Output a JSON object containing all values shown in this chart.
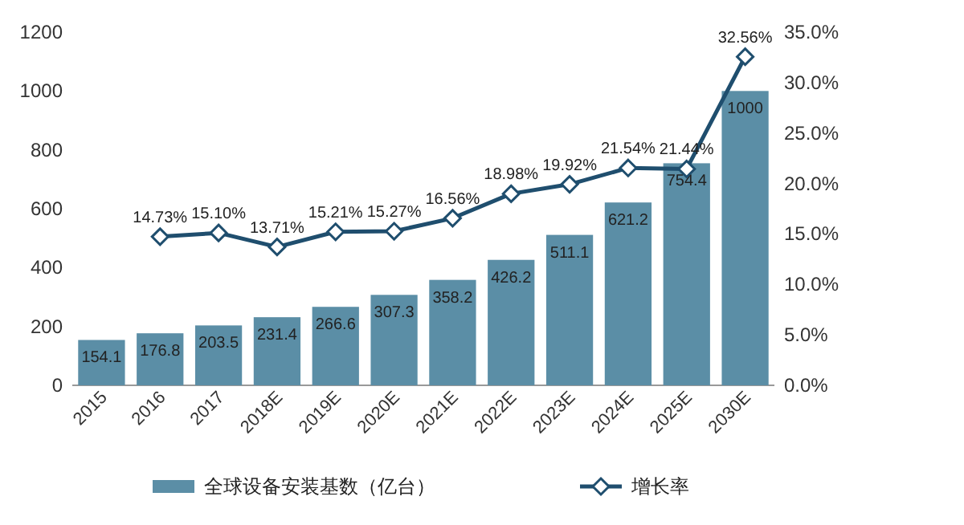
{
  "chart_data": {
    "type": "bar",
    "categories": [
      "2015",
      "2016",
      "2017",
      "2018E",
      "2019E",
      "2020E",
      "2021E",
      "2022E",
      "2023E",
      "2024E",
      "2025E",
      "2030E"
    ],
    "series": [
      {
        "name": "全球设备安装基数（亿台）",
        "color": "#5b8ea6",
        "values": [
          154.1,
          176.8,
          203.5,
          231.4,
          266.6,
          307.3,
          358.2,
          426.2,
          511.1,
          621.2,
          754.4,
          1000
        ],
        "value_labels": [
          "154.1",
          "176.8",
          "203.5",
          "231.4",
          "266.6",
          "307.3",
          "358.2",
          "426.2",
          "511.1",
          "621.2",
          "754.4",
          "1000"
        ]
      },
      {
        "name": "增长率",
        "type": "line",
        "axis": "y2",
        "color": "#1f4e6e",
        "marker": "diamond",
        "values": [
          null,
          14.73,
          15.1,
          13.71,
          15.21,
          15.27,
          16.56,
          18.98,
          19.92,
          21.54,
          21.44,
          32.56
        ],
        "value_labels": [
          null,
          "14.73%",
          "15.10%",
          "13.71%",
          "15.21%",
          "15.27%",
          "16.56%",
          "18.98%",
          "19.92%",
          "21.54%",
          "21.44%",
          "32.56%"
        ]
      }
    ],
    "ylim": [
      0,
      1200
    ],
    "yticks": [
      0,
      200,
      400,
      600,
      800,
      1000,
      1200
    ],
    "y2lim": [
      0,
      35
    ],
    "y2ticks": [
      {
        "value": 0,
        "label": "0.0%"
      },
      {
        "value": 5,
        "label": "5.0%"
      },
      {
        "value": 10,
        "label": "10.0%"
      },
      {
        "value": 15,
        "label": "15.0%"
      },
      {
        "value": 20,
        "label": "20.0%"
      },
      {
        "value": 25,
        "label": "25.0%"
      },
      {
        "value": 30,
        "label": "30.0%"
      },
      {
        "value": 35,
        "label": "35.0%"
      }
    ],
    "legend": "bottom",
    "grid": false
  }
}
